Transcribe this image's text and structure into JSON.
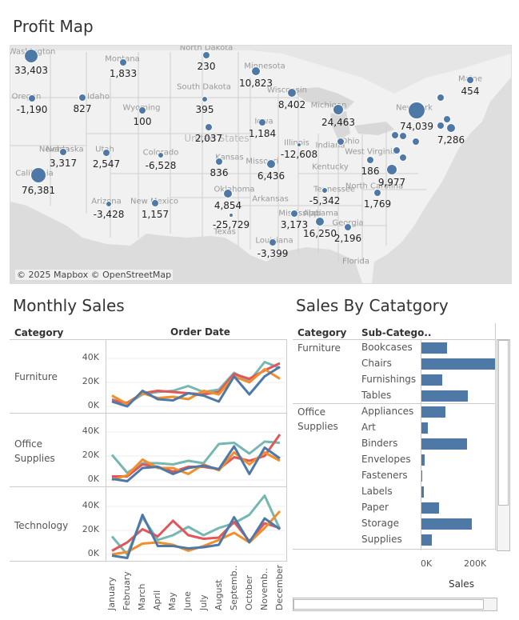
{
  "titles": {
    "map": "Profit Map",
    "monthly": "Monthly Sales",
    "bycat": "Sales By Catatgory"
  },
  "map": {
    "credit": "© 2025 Mapbox © OpenStreetMap",
    "state_labels": [
      "Washington",
      "Oregon",
      "Idaho",
      "Montana",
      "Wyoming",
      "North Dakota",
      "South Dakota",
      "Nebraska",
      "Colorado",
      "Utah",
      "Nevada",
      "California",
      "Arizona",
      "New Mexico",
      "Texas",
      "Oklahoma",
      "Kansas",
      "Minnesota",
      "Iowa",
      "Missouri",
      "Arkansas",
      "Louisiana",
      "Wisconsin",
      "Illinois",
      "Michigan",
      "Indiana",
      "Ohio",
      "Kentucky",
      "Tennessee",
      "Mississippi",
      "Alabama",
      "Georgia",
      "Florida",
      "North Carolina",
      "West Virginia",
      "New York",
      "Maine",
      "United States"
    ],
    "pins": [
      {
        "label": "33,403",
        "size": 9
      },
      {
        "label": "1,833",
        "size": 5
      },
      {
        "label": "230",
        "size": 5
      },
      {
        "label": "-1,190",
        "size": 5
      },
      {
        "label": "827",
        "size": 5
      },
      {
        "label": "100",
        "size": 5
      },
      {
        "label": "395",
        "size": 4
      },
      {
        "label": "10,823",
        "size": 6
      },
      {
        "label": "8,402",
        "size": 6
      },
      {
        "label": "454",
        "size": 5
      },
      {
        "label": "24,463",
        "size": 7
      },
      {
        "label": "74,039",
        "size": 11
      },
      {
        "label": "7,286",
        "size": 6
      },
      {
        "label": "2,037",
        "size": 5
      },
      {
        "label": "1,184",
        "size": 5
      },
      {
        "label": "3,317",
        "size": 5
      },
      {
        "label": "2,547",
        "size": 5
      },
      {
        "label": "-6,528",
        "size": 4
      },
      {
        "label": "836",
        "size": 5
      },
      {
        "label": "-12,608",
        "size": 3
      },
      {
        "label": "76,381",
        "size": 10
      },
      {
        "label": "6,436",
        "size": 6
      },
      {
        "label": "186",
        "size": 5
      },
      {
        "label": "9,977",
        "size": 7
      },
      {
        "label": "-3,428",
        "size": 4
      },
      {
        "label": "1,157",
        "size": 5
      },
      {
        "label": "4,854",
        "size": 6
      },
      {
        "label": "-5,342",
        "size": 4
      },
      {
        "label": "-25,729",
        "size": 3
      },
      {
        "label": "1,769",
        "size": 5
      },
      {
        "label": "3,173",
        "size": 5
      },
      {
        "label": "16,250",
        "size": 6
      },
      {
        "label": "2,196",
        "size": 5
      },
      {
        "label": "-3,399",
        "size": 5
      }
    ]
  },
  "monthly": {
    "col_category": "Category",
    "col_order_date": "Order Date",
    "categories": [
      "Furniture",
      "Office\nSupplies",
      "Technology"
    ],
    "y_ticks": [
      "40K",
      "20K",
      "0K"
    ],
    "months": [
      "January",
      "February",
      "March",
      "April",
      "May",
      "June",
      "July",
      "August",
      "Septemb..",
      "October",
      "Novemb..",
      "December"
    ],
    "colors": [
      "#76b7b2",
      "#e15759",
      "#f28e2b",
      "#4e79a7"
    ]
  },
  "chart_data": [
    {
      "type": "line",
      "title": "Furniture",
      "x": [
        "January",
        "February",
        "March",
        "April",
        "May",
        "June",
        "July",
        "August",
        "Septemb..",
        "October",
        "Novemb..",
        "December"
      ],
      "ylim": [
        0,
        45000
      ],
      "series": [
        {
          "color": "#76b7b2",
          "values": [
            6000,
            2000,
            10000,
            12000,
            13000,
            17000,
            12000,
            14000,
            28000,
            21000,
            37000,
            32000
          ]
        },
        {
          "color": "#e15759",
          "values": [
            5000,
            3000,
            11000,
            13000,
            12000,
            11000,
            10000,
            12000,
            27000,
            23000,
            30000,
            36000
          ]
        },
        {
          "color": "#f28e2b",
          "values": [
            9000,
            2000,
            11000,
            7000,
            8000,
            6000,
            13000,
            10000,
            25000,
            20000,
            31000,
            23000
          ]
        },
        {
          "color": "#4e79a7",
          "values": [
            4000,
            0,
            13000,
            6000,
            5000,
            11000,
            9000,
            4000,
            25000,
            10000,
            25000,
            33000
          ]
        }
      ]
    },
    {
      "type": "line",
      "title": "Office Supplies",
      "x": [
        "January",
        "February",
        "March",
        "April",
        "May",
        "June",
        "July",
        "August",
        "Septemb..",
        "October",
        "Novemb..",
        "December"
      ],
      "ylim": [
        0,
        45000
      ],
      "series": [
        {
          "color": "#76b7b2",
          "values": [
            21000,
            6000,
            14000,
            14000,
            13000,
            16000,
            14000,
            30000,
            31000,
            22000,
            32000,
            31000
          ]
        },
        {
          "color": "#e15759",
          "values": [
            3000,
            3000,
            13000,
            11000,
            7000,
            11000,
            11000,
            9000,
            19000,
            16000,
            20000,
            38000
          ]
        },
        {
          "color": "#f28e2b",
          "values": [
            0,
            4000,
            17000,
            10000,
            10000,
            5000,
            13000,
            8000,
            23000,
            13000,
            23000,
            16000
          ]
        },
        {
          "color": "#4e79a7",
          "values": [
            1000,
            -1000,
            10000,
            11000,
            5000,
            10000,
            12000,
            9000,
            28000,
            5000,
            27000,
            18000
          ]
        }
      ]
    },
    {
      "type": "line",
      "title": "Technology",
      "x": [
        "January",
        "February",
        "March",
        "April",
        "May",
        "June",
        "July",
        "August",
        "Septemb..",
        "October",
        "Novemb..",
        "December"
      ],
      "ylim": [
        0,
        45000
      ],
      "series": [
        {
          "color": "#76b7b2",
          "values": [
            15000,
            0,
            31000,
            12000,
            16000,
            23000,
            16000,
            22000,
            26000,
            33000,
            49000,
            21000
          ]
        },
        {
          "color": "#e15759",
          "values": [
            3000,
            10000,
            21000,
            15000,
            28000,
            16000,
            13000,
            14000,
            27000,
            11000,
            26000,
            22000
          ]
        },
        {
          "color": "#f28e2b",
          "values": [
            0,
            2000,
            9000,
            10000,
            8000,
            3000,
            7000,
            12000,
            18000,
            10000,
            22000,
            36000
          ]
        },
        {
          "color": "#4e79a7",
          "values": [
            -1000,
            -3000,
            33000,
            7000,
            7000,
            5000,
            6000,
            8000,
            31000,
            10000,
            30000,
            21000
          ]
        }
      ]
    },
    {
      "type": "bar",
      "title": "Sales By Catatgory",
      "xlabel": "Sales",
      "x_ticks": [
        "0K",
        "200K"
      ],
      "xlim": [
        0,
        350000
      ],
      "color": "#4e79a7",
      "groups": [
        {
          "category": "Furniture",
          "items": [
            {
              "name": "Bookcases",
              "value": 115000
            },
            {
              "name": "Chairs",
              "value": 328000
            },
            {
              "name": "Furnishings",
              "value": 92000
            },
            {
              "name": "Tables",
              "value": 207000
            }
          ]
        },
        {
          "category": "Office\nSupplies",
          "items": [
            {
              "name": "Appliances",
              "value": 107000
            },
            {
              "name": "Art",
              "value": 27000
            },
            {
              "name": "Binders",
              "value": 204000
            },
            {
              "name": "Envelopes",
              "value": 16000
            },
            {
              "name": "Fasteners",
              "value": 3000
            },
            {
              "name": "Labels",
              "value": 12000
            },
            {
              "name": "Paper",
              "value": 78000
            },
            {
              "name": "Storage",
              "value": 224000
            },
            {
              "name": "Supplies",
              "value": 47000
            }
          ]
        }
      ]
    }
  ],
  "bycat": {
    "col_category": "Category",
    "col_sub": "Sub-Catego.."
  }
}
